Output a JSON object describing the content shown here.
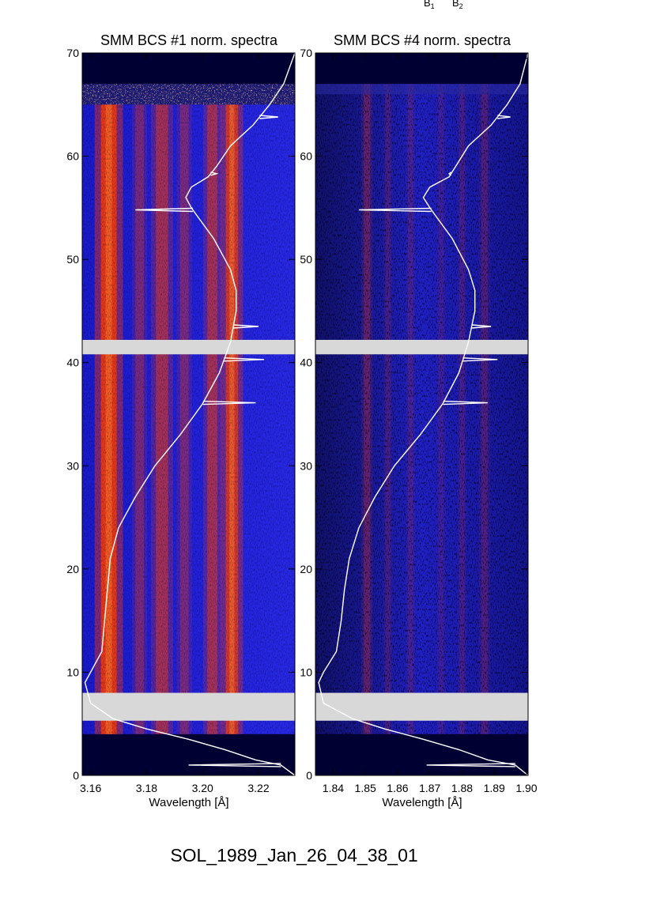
{
  "header_labels": {
    "b1": "B",
    "b1_sub": "1",
    "b2": "B",
    "b2_sub": "2"
  },
  "footer_title": "SOL_1989_Jan_26_04_38_01",
  "colors": {
    "background": "#000033",
    "spectrum_blue": "#2020e0",
    "line_red": "#e03010",
    "gap_gray": "#d8d8d8",
    "curve": "#ffffff"
  },
  "chart_data": [
    {
      "type": "heatmap",
      "title": "SMM BCS #1 norm. spectra",
      "xlabel": "Wavelength [Å]",
      "ylabel": "",
      "xlim": [
        3.157,
        3.233
      ],
      "ylim": [
        0,
        70
      ],
      "x_ticks": [
        3.16,
        3.18,
        3.2,
        3.22
      ],
      "x_tick_labels": [
        "3.16",
        "3.18",
        "3.20",
        "3.22"
      ],
      "y_ticks": [
        0,
        10,
        20,
        30,
        40,
        50,
        60,
        70
      ],
      "y_tick_labels": [
        "0",
        "10",
        "20",
        "30",
        "40",
        "50",
        "60",
        "70"
      ],
      "data_gaps": [
        [
          5.3,
          8.0
        ],
        [
          40.8,
          42.2
        ]
      ],
      "data_range": [
        4.0,
        65.0
      ],
      "noise_band": [
        65.0,
        67.0
      ],
      "emission_lines": [
        {
          "wavelength": 3.1665,
          "strength": 1.0,
          "width": 0.0028
        },
        {
          "wavelength": 3.1775,
          "strength": 0.35,
          "width": 0.0015
        },
        {
          "wavelength": 3.1855,
          "strength": 0.55,
          "width": 0.0022
        },
        {
          "wavelength": 3.1935,
          "strength": 0.35,
          "width": 0.0015
        },
        {
          "wavelength": 3.2035,
          "strength": 0.55,
          "width": 0.0018
        },
        {
          "wavelength": 3.2105,
          "strength": 0.85,
          "width": 0.0022
        }
      ],
      "curve": {
        "x": [
          3.233,
          3.228,
          3.219,
          3.208,
          3.195,
          3.18,
          3.168,
          3.16,
          3.158,
          3.16,
          3.164,
          3.165,
          3.166,
          3.167,
          3.17,
          3.176,
          3.183,
          3.192,
          3.2,
          3.206,
          3.21,
          3.212,
          3.212,
          3.21,
          3.204,
          3.196,
          3.194,
          3.196,
          3.202,
          3.205,
          3.21,
          3.218,
          3.224,
          3.229,
          3.233
        ],
        "y": [
          0,
          1,
          1.5,
          2.5,
          3.5,
          4.5,
          5.5,
          7,
          9,
          10,
          12,
          15,
          18,
          21,
          24,
          27,
          30,
          33,
          36,
          39,
          42,
          45,
          47,
          49,
          52,
          55,
          56,
          57,
          58,
          59,
          61,
          63,
          65,
          67,
          70
        ]
      },
      "curve_spikes": [
        {
          "y": 1.0,
          "x": 3.195
        },
        {
          "y": 36.1,
          "x": 3.219
        },
        {
          "y": 40.3,
          "x": 3.222
        },
        {
          "y": 43.5,
          "x": 3.22
        },
        {
          "y": 54.8,
          "x": 3.176
        },
        {
          "y": 58.3,
          "x": 3.205
        },
        {
          "y": 63.8,
          "x": 3.227
        }
      ]
    },
    {
      "type": "heatmap",
      "title": "SMM BCS #4 norm. spectra",
      "xlabel": "Wavelength [Å]",
      "ylabel": "",
      "xlim": [
        1.8345,
        1.9005
      ],
      "ylim": [
        0,
        70
      ],
      "x_ticks": [
        1.84,
        1.85,
        1.86,
        1.87,
        1.88,
        1.89,
        1.9
      ],
      "x_tick_labels": [
        "1.84",
        "1.85",
        "1.86",
        "1.87",
        "1.88",
        "1.89",
        "1.90"
      ],
      "y_ticks": [
        0,
        10,
        20,
        30,
        40,
        50,
        60,
        70
      ],
      "y_tick_labels": [
        "0",
        "10",
        "20",
        "30",
        "40",
        "50",
        "60",
        "70"
      ],
      "data_gaps": [
        [
          5.3,
          8.0
        ],
        [
          40.8,
          42.2
        ]
      ],
      "data_range": [
        4.0,
        67.0
      ],
      "noise_band": [
        66.0,
        67.0
      ],
      "emission_lines": [
        {
          "wavelength": 1.8505,
          "strength": 0.35,
          "width": 0.001
        },
        {
          "wavelength": 1.857,
          "strength": 0.2,
          "width": 0.0008
        },
        {
          "wavelength": 1.864,
          "strength": 0.2,
          "width": 0.0008
        },
        {
          "wavelength": 1.8735,
          "strength": 0.15,
          "width": 0.0008
        },
        {
          "wavelength": 1.88,
          "strength": 0.2,
          "width": 0.0008
        },
        {
          "wavelength": 1.887,
          "strength": 0.25,
          "width": 0.001
        }
      ],
      "curve": {
        "x": [
          1.9005,
          1.8965,
          1.888,
          1.879,
          1.868,
          1.856,
          1.846,
          1.837,
          1.8355,
          1.837,
          1.841,
          1.8425,
          1.8435,
          1.845,
          1.848,
          1.853,
          1.859,
          1.867,
          1.874,
          1.879,
          1.882,
          1.884,
          1.884,
          1.882,
          1.877,
          1.87,
          1.868,
          1.87,
          1.876,
          1.878,
          1.882,
          1.889,
          1.894,
          1.898,
          1.9005
        ],
        "y": [
          0,
          1,
          1.5,
          2.5,
          3.5,
          4.5,
          5.5,
          7,
          9,
          10,
          12,
          15,
          18,
          21,
          24,
          27,
          30,
          33,
          36,
          39,
          42,
          45,
          47,
          49,
          52,
          55,
          56,
          57,
          58,
          59,
          61,
          63,
          65,
          67,
          70
        ]
      },
      "curve_spikes": [
        {
          "y": 1.0,
          "x": 1.869
        },
        {
          "y": 36.1,
          "x": 1.888
        },
        {
          "y": 40.3,
          "x": 1.891
        },
        {
          "y": 43.5,
          "x": 1.889
        },
        {
          "y": 54.8,
          "x": 1.848
        },
        {
          "y": 58.3,
          "x": 1.876
        },
        {
          "y": 63.8,
          "x": 1.895
        }
      ]
    }
  ]
}
